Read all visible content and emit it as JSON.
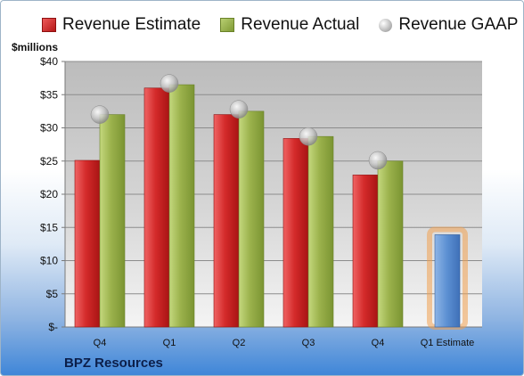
{
  "chart_data": {
    "type": "bar",
    "ylabel": "$millions",
    "company": "BPZ Resources",
    "ylim": [
      0,
      40
    ],
    "yticks": [
      "$-",
      "$5",
      "$10",
      "$15",
      "$20",
      "$25",
      "$30",
      "$35",
      "$40"
    ],
    "categories": [
      "Q4",
      "Q1",
      "Q2",
      "Q3",
      "Q4",
      "Q1 Estimate"
    ],
    "series": [
      {
        "name": "Revenue Estimate",
        "values": [
          25.1,
          36.0,
          32.0,
          28.4,
          22.9,
          null
        ]
      },
      {
        "name": "Revenue Actual",
        "values": [
          32.0,
          36.5,
          32.5,
          28.7,
          25.0,
          null
        ]
      },
      {
        "name": "Revenue GAAP",
        "values": [
          32.0,
          36.7,
          32.8,
          28.7,
          25.1,
          null
        ]
      }
    ],
    "forecast": {
      "category": "Q1 Estimate",
      "value": 13.9
    },
    "grid": true,
    "legend": "top",
    "colors": {
      "estimate": "#c62828",
      "actual": "#93ab47",
      "gaap": "#b0b0b0",
      "forecast": "#5b8fd2",
      "forecast_glow": "#f0a050"
    }
  }
}
